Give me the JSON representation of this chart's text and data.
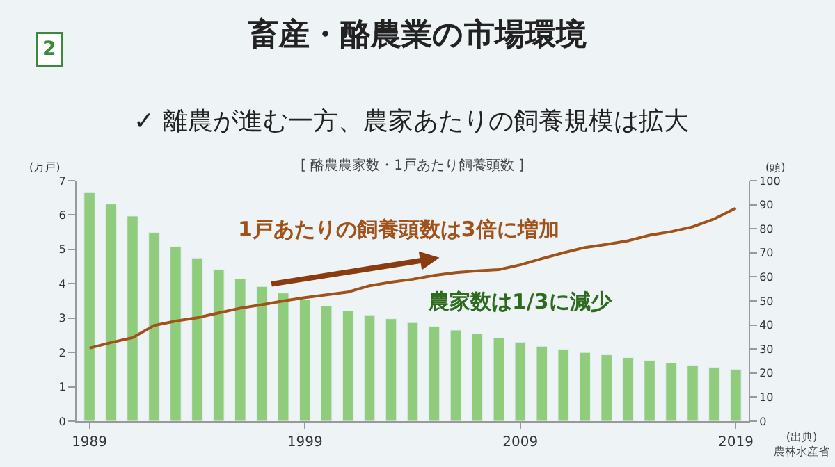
{
  "chart_data": {
    "type": "bar",
    "title": "畜産・酪農業の市場環境",
    "subtitle": "✓ 離農が進む一方、農家あたりの飼養規模は拡大",
    "ylabel": "(万戸)",
    "y2label": "(頭)",
    "annotations": [
      "2",
      "[ 酪農農家数・1戸あたり飼養頭数 ]",
      "1戸あたりの飼養頭数は3倍に増加",
      "農家数は1/3に減少",
      "(出典)\n農林水産省"
    ],
    "x": [
      1989,
      1990,
      1991,
      1992,
      1993,
      1994,
      1995,
      1996,
      1997,
      1998,
      1999,
      2000,
      2001,
      2002,
      2003,
      2004,
      2005,
      2006,
      2007,
      2008,
      2009,
      2010,
      2011,
      2012,
      2013,
      2014,
      2015,
      2016,
      2017,
      2018,
      2019
    ],
    "series": [
      {
        "color": "#8fcc7c",
        "values": [
          6.65,
          6.32,
          5.97,
          5.49,
          5.08,
          4.75,
          4.42,
          4.14,
          3.92,
          3.73,
          3.53,
          3.35,
          3.21,
          3.09,
          2.98,
          2.87,
          2.76,
          2.65,
          2.54,
          2.43,
          2.3,
          2.18,
          2.09,
          2.0,
          1.93,
          1.85,
          1.77,
          1.69,
          1.63,
          1.57,
          1.51
        ]
      },
      {
        "type": "line",
        "axis": "y2",
        "color": "#a0521a",
        "values": [
          30.4,
          32.7,
          34.7,
          39.8,
          41.6,
          43,
          45,
          47,
          48.4,
          50,
          51.4,
          52.5,
          53.7,
          56.3,
          57.8,
          59,
          60.6,
          61.8,
          62.5,
          63,
          65,
          67.6,
          70,
          72.2,
          73.5,
          75,
          77.3,
          78.8,
          80.8,
          84.1,
          88.6
        ]
      }
    ],
    "xlim": [
      1988.4,
      2019.6
    ],
    "xticks": [
      1989,
      1999,
      2009,
      2019
    ],
    "ylim": [
      0,
      7
    ],
    "yticks": [
      0,
      1,
      2,
      3,
      4,
      5,
      6,
      7
    ],
    "y2lim": [
      0,
      100
    ],
    "y2ticks": [
      0,
      10,
      20,
      30,
      40,
      50,
      60,
      70,
      80,
      90,
      100
    ],
    "grid": false
  }
}
